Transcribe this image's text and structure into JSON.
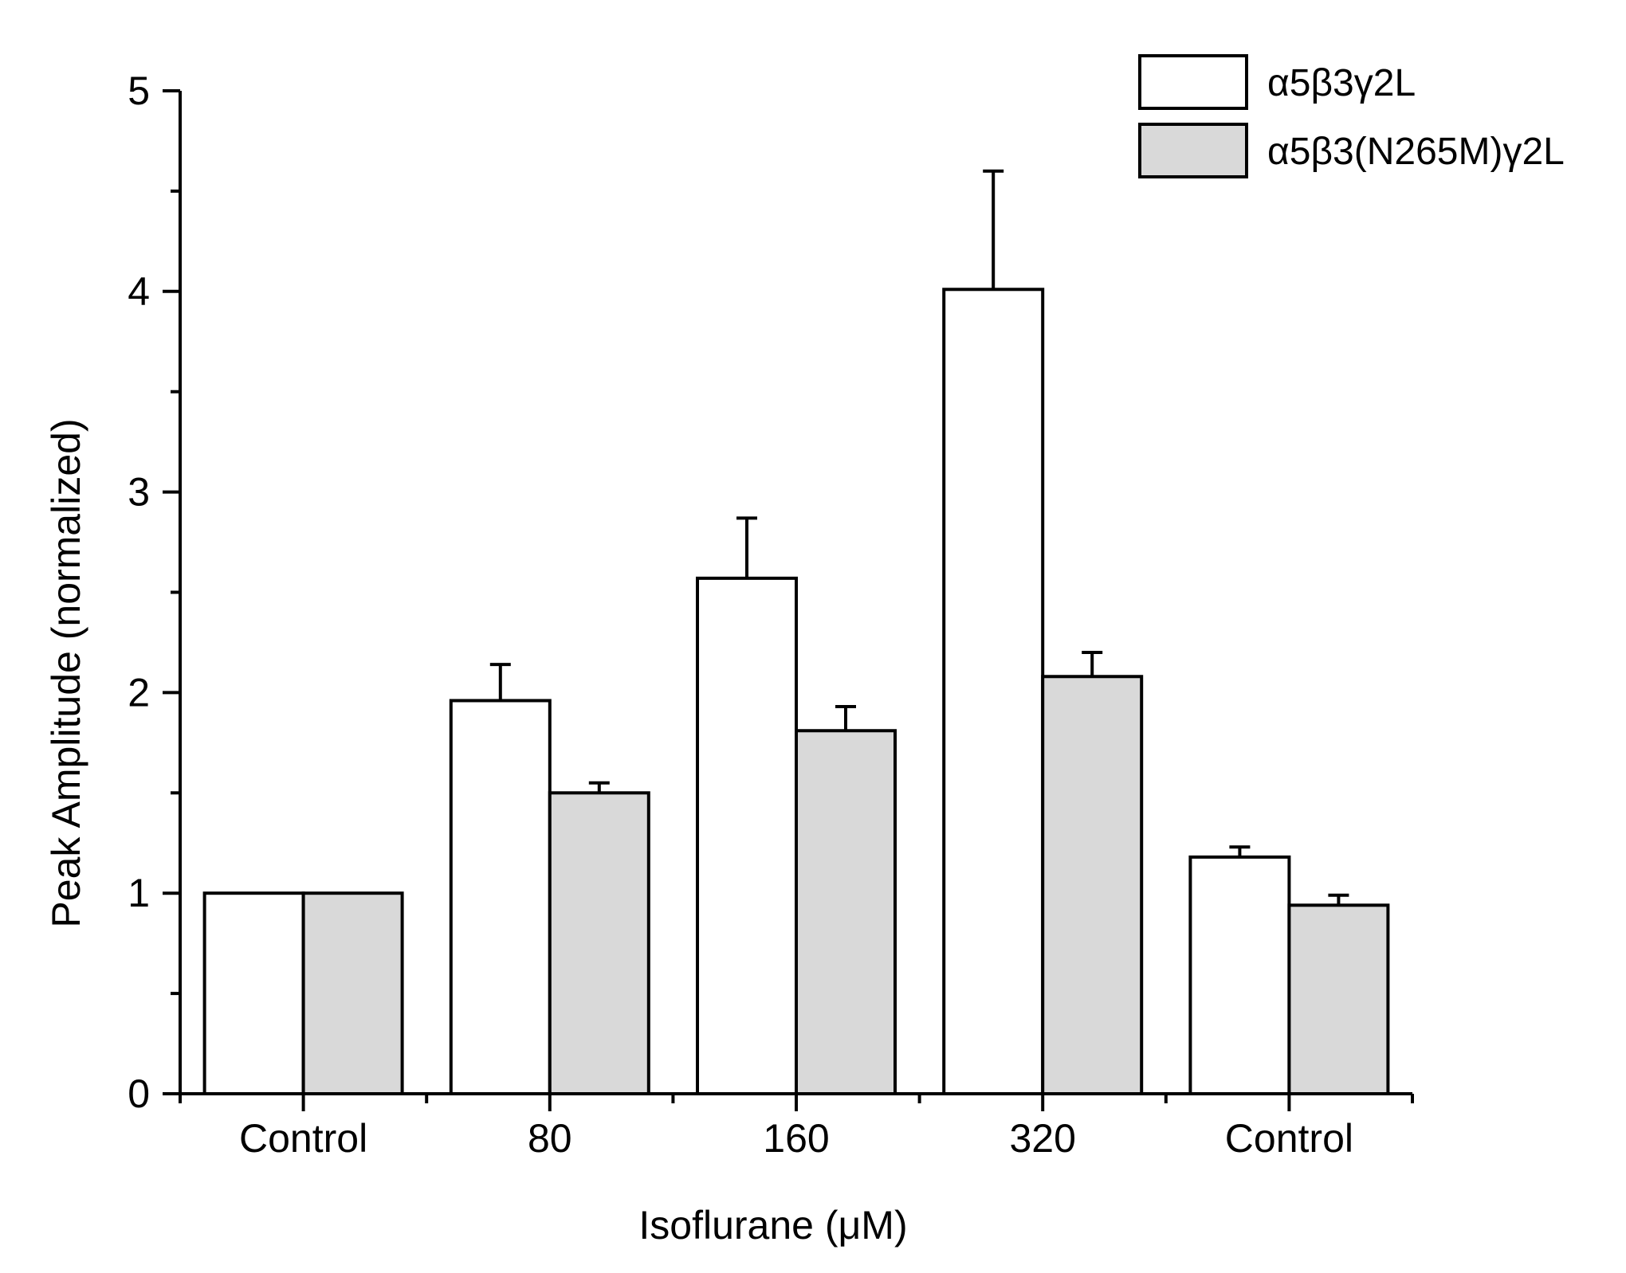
{
  "chart_data": {
    "type": "bar",
    "title": "",
    "xlabel": "Isoflurane (μM)",
    "ylabel": "Peak Amplitude (normalized)",
    "ylim": [
      0,
      5
    ],
    "yticks": [
      0,
      1,
      2,
      3,
      4,
      5
    ],
    "ytick_labels": [
      "0",
      "1",
      "2",
      "3",
      "4",
      "5"
    ],
    "categories": [
      "Control",
      "80",
      "160",
      "320",
      "Control"
    ],
    "legend_position": "top-right",
    "grid": false,
    "series": [
      {
        "name": "α5β3γ2L",
        "color": "#ffffff",
        "values": [
          1.0,
          1.96,
          2.57,
          4.01,
          1.18
        ],
        "errors": [
          0,
          0.18,
          0.3,
          0.59,
          0.05
        ]
      },
      {
        "name": "α5β3(N265M)γ2L",
        "color": "#d9d9d9",
        "values": [
          1.0,
          1.5,
          1.81,
          2.08,
          0.94
        ],
        "errors": [
          0,
          0.05,
          0.12,
          0.12,
          0.05
        ]
      }
    ]
  }
}
